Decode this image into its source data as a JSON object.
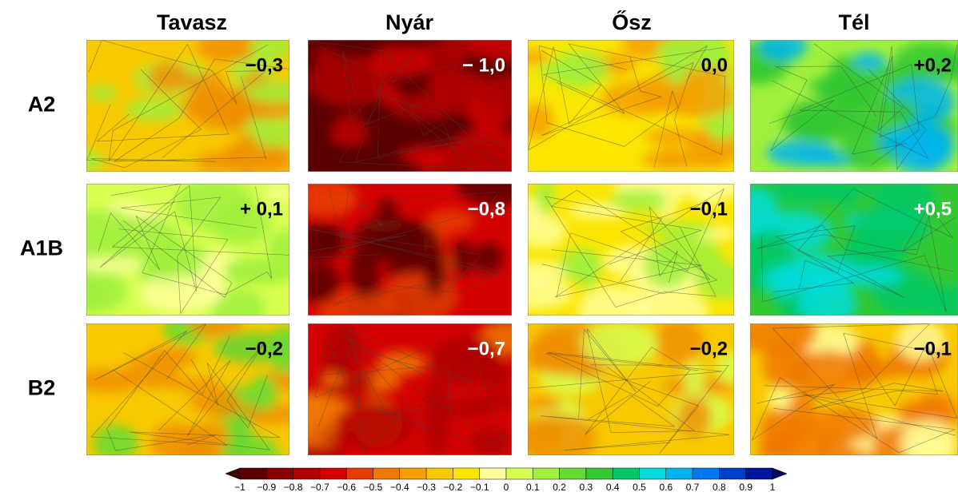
{
  "columns": [
    "Tavasz",
    "Nyár",
    "Ősz",
    "Tél"
  ],
  "rows": [
    {
      "label": "A2",
      "panels": [
        {
          "value_label": "−0,3",
          "label_color": "#000000",
          "colors": [
            "#f8c800",
            "#f09000",
            "#a0f03c"
          ]
        },
        {
          "value_label": "− 1,0",
          "label_color": "#ffffff",
          "colors": [
            "#5a0000",
            "#b00000",
            "#d40000"
          ]
        },
        {
          "value_label": "0,0",
          "label_color": "#000000",
          "colors": [
            "#fae600",
            "#f5a000",
            "#a0f03c"
          ]
        },
        {
          "value_label": "+0,2",
          "label_color": "#000000",
          "colors": [
            "#a0f03c",
            "#32c832",
            "#00b4f0"
          ]
        }
      ]
    },
    {
      "label": "A1B",
      "panels": [
        {
          "value_label": "+ 0,1",
          "label_color": "#000000",
          "colors": [
            "#d7ff50",
            "#a0f03c",
            "#ffff99"
          ]
        },
        {
          "value_label": "−0,8",
          "label_color": "#ffffff",
          "colors": [
            "#d40000",
            "#5a0000",
            "#e63c00"
          ]
        },
        {
          "value_label": "−0,1",
          "label_color": "#000000",
          "colors": [
            "#fae600",
            "#ffff99",
            "#a0f03c"
          ]
        },
        {
          "value_label": "+0,5",
          "label_color": "#ffffff",
          "colors": [
            "#32c832",
            "#00c864",
            "#00dcdc"
          ]
        }
      ]
    },
    {
      "label": "B2",
      "panels": [
        {
          "value_label": "−0,2",
          "label_color": "#000000",
          "colors": [
            "#f8c800",
            "#f09000",
            "#64dc32"
          ]
        },
        {
          "value_label": "−0,7",
          "label_color": "#ffffff",
          "colors": [
            "#d40000",
            "#b00000",
            "#f07800"
          ]
        },
        {
          "value_label": "−0,2",
          "label_color": "#000000",
          "colors": [
            "#f8c800",
            "#f09000",
            "#d7ff50"
          ]
        },
        {
          "value_label": "−0,1",
          "label_color": "#000000",
          "colors": [
            "#f8c800",
            "#f07800",
            "#ffff99"
          ]
        }
      ]
    }
  ],
  "colorbar": {
    "ticks": [
      "−1",
      "−0.9",
      "−0.8",
      "−0.7",
      "−0.6",
      "−0.5",
      "−0.4",
      "−0.3",
      "−0.2",
      "−0.1",
      "0",
      "0.1",
      "0.2",
      "0.3",
      "0.4",
      "0.5",
      "0.6",
      "0.7",
      "0.8",
      "0.9",
      "1"
    ],
    "colors": [
      "#3a0000",
      "#5a0000",
      "#8b0000",
      "#b00000",
      "#d40000",
      "#e63c00",
      "#f07800",
      "#f5a000",
      "#f8c800",
      "#fae600",
      "#ffff99",
      "#d7ff50",
      "#a0f03c",
      "#64dc32",
      "#32c832",
      "#00c864",
      "#00dcdc",
      "#00b4f0",
      "#0078f0",
      "#0040c8",
      "#0014a0",
      "#000a60"
    ]
  }
}
